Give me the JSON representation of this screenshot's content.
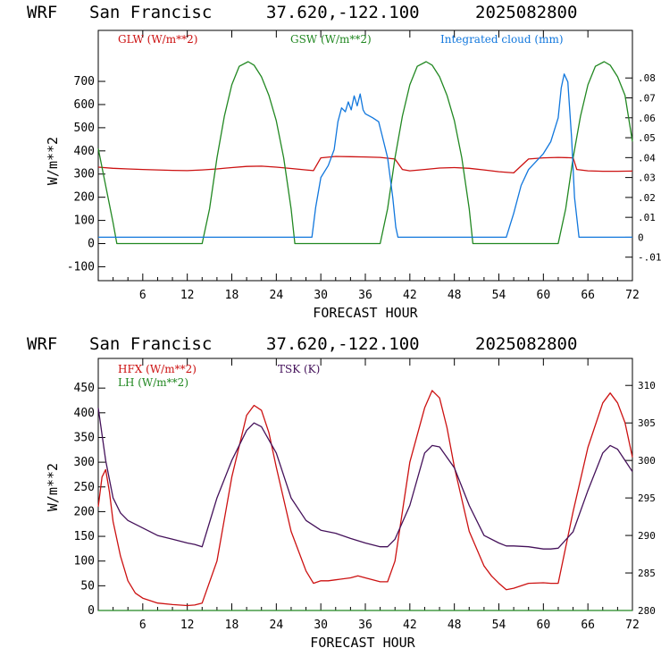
{
  "charts": [
    {
      "header": {
        "model": "WRF",
        "station": "San Francisc",
        "coords": "37.620,-122.100",
        "date": "2025082800"
      },
      "chart_data": {
        "type": "line",
        "xlabel": "FORECAST HOUR",
        "ylabel": "W/m**2",
        "xlim": [
          0,
          72
        ],
        "xticks": [
          6,
          12,
          18,
          24,
          30,
          36,
          42,
          48,
          54,
          60,
          66,
          72
        ],
        "ylim": [
          -160,
          920
        ],
        "yticks": [
          -100,
          0,
          100,
          200,
          300,
          400,
          500,
          600,
          700
        ],
        "y2lim": [
          -0.0218,
          0.1039
        ],
        "y2ticks": [
          -0.01,
          0,
          0.01,
          0.02,
          0.03,
          0.04,
          0.05,
          0.06,
          0.07,
          0.08
        ],
        "y2ticklabels": [
          "-.01",
          "0",
          ".01",
          ".02",
          ".03",
          ".04",
          ".05",
          ".06",
          ".07",
          ".08"
        ],
        "grid": false,
        "legend_position": "top",
        "series": [
          {
            "name": "GLW (W/m**2)",
            "color": "#cc1111",
            "axis": "left",
            "x": [
              0,
              2,
              4,
              6,
              8,
              10,
              12,
              14,
              16,
              18,
              20,
              22,
              24,
              26,
              28,
              29,
              30,
              32,
              34,
              36,
              38,
              40,
              41,
              42,
              44,
              46,
              48,
              50,
              52,
              54,
              56,
              58,
              60,
              62,
              64,
              64.5,
              66,
              68,
              70,
              72
            ],
            "y": [
              330,
              325,
              322,
              320,
              318,
              316,
              315,
              318,
              322,
              328,
              333,
              334,
              330,
              324,
              318,
              315,
              370,
              376,
              375,
              374,
              372,
              365,
              320,
              314,
              320,
              326,
              328,
              325,
              318,
              310,
              305,
              365,
              370,
              372,
              370,
              320,
              314,
              312,
              312,
              313
            ]
          },
          {
            "name": "GSW (W/m**2)",
            "color": "#228822",
            "axis": "left",
            "x": [
              0,
              1,
              2,
              2.5,
              14,
              15,
              16,
              17,
              18,
              19,
              20.2,
              21,
              22,
              23,
              24,
              25,
              26,
              26.5,
              38,
              39,
              40,
              41,
              42,
              43,
              44.2,
              45,
              46,
              47,
              48,
              49,
              50,
              50.5,
              62,
              63,
              64,
              65,
              66,
              67,
              68.2,
              69,
              70,
              71,
              72
            ],
            "y": [
              410,
              250,
              90,
              0,
              0,
              150,
              370,
              550,
              685,
              765,
              785,
              770,
              720,
              640,
              530,
              370,
              150,
              0,
              0,
              150,
              370,
              550,
              685,
              765,
              785,
              770,
              720,
              640,
              530,
              370,
              150,
              0,
              0,
              150,
              370,
              550,
              685,
              765,
              785,
              770,
              720,
              640,
              440
            ]
          },
          {
            "name": "Integrated cloud (mm)",
            "color": "#1177dd",
            "axis": "right",
            "x": [
              0,
              28.8,
              29.3,
              30,
              31,
              31.8,
              32.3,
              32.8,
              33.3,
              33.7,
              34.1,
              34.5,
              34.9,
              35.3,
              35.7,
              36,
              37,
              37.8,
              38.2,
              39,
              39.7,
              40.1,
              40.4,
              55,
              56,
              57,
              58,
              59,
              60,
              61,
              62,
              62.4,
              62.8,
              63.3,
              63.8,
              64.2,
              64.8,
              72
            ],
            "y": [
              0,
              0,
              0.015,
              0.03,
              0.036,
              0.044,
              0.058,
              0.065,
              0.063,
              0.068,
              0.064,
              0.071,
              0.066,
              0.072,
              0.064,
              0.062,
              0.06,
              0.058,
              0.052,
              0.04,
              0.02,
              0.005,
              0,
              0,
              0.012,
              0.026,
              0.034,
              0.038,
              0.042,
              0.048,
              0.06,
              0.075,
              0.082,
              0.078,
              0.05,
              0.02,
              0,
              0
            ]
          }
        ]
      }
    },
    {
      "header": {
        "model": "WRF",
        "station": "San Francisc",
        "coords": "37.620,-122.100",
        "date": "2025082800"
      },
      "chart_data": {
        "type": "line",
        "xlabel": "FORECAST HOUR",
        "ylabel": "W/m**2",
        "xlim": [
          0,
          72
        ],
        "xticks": [
          6,
          12,
          18,
          24,
          30,
          36,
          42,
          48,
          54,
          60,
          66,
          72
        ],
        "ylim": [
          0,
          510
        ],
        "yticks": [
          0,
          50,
          100,
          150,
          200,
          250,
          300,
          350,
          400,
          450
        ],
        "y2lim": [
          280,
          313.6
        ],
        "y2ticks": [
          280,
          285,
          290,
          295,
          300,
          305,
          310
        ],
        "grid": false,
        "legend_position": "top-left",
        "series": [
          {
            "name": "HFX (W/m**2)",
            "color": "#cc1111",
            "axis": "left",
            "x": [
              0,
              0.5,
              1,
              1.5,
              2,
              3,
              4,
              5,
              6,
              8,
              10,
              12,
              13,
              14,
              16,
              18,
              20,
              21,
              22,
              23,
              24,
              26,
              28,
              29,
              30,
              31,
              32,
              34,
              35,
              36,
              38,
              39,
              40,
              41,
              42,
              44,
              45,
              46,
              47,
              48,
              50,
              52,
              53,
              54,
              55,
              56,
              58,
              60,
              61,
              62,
              64,
              66,
              68,
              69,
              70,
              71,
              72
            ],
            "y": [
              210,
              270,
              285,
              240,
              180,
              110,
              60,
              35,
              25,
              15,
              12,
              10,
              11,
              15,
              100,
              270,
              395,
              415,
              405,
              360,
              290,
              160,
              80,
              55,
              60,
              60,
              62,
              66,
              70,
              66,
              58,
              58,
              100,
              200,
              300,
              410,
              445,
              430,
              370,
              290,
              160,
              90,
              70,
              55,
              42,
              45,
              55,
              56,
              55,
              55,
              200,
              330,
              420,
              440,
              420,
              380,
              310
            ]
          },
          {
            "name": "LH  (W/m**2)",
            "color": "#228822",
            "axis": "left",
            "x": [
              0,
              72
            ],
            "y": [
              0,
              0
            ]
          },
          {
            "name": "TSK (K)",
            "color": "#44115a",
            "axis": "right",
            "x": [
              0,
              1,
              2,
              3,
              4,
              6,
              8,
              10,
              12,
              13,
              14,
              16,
              18,
              20,
              21,
              22,
              24,
              26,
              28,
              30,
              32,
              34,
              36,
              38,
              39,
              40,
              42,
              44,
              45,
              46,
              48,
              50,
              52,
              54,
              55,
              56,
              58,
              60,
              61,
              62,
              64,
              66,
              68,
              69,
              70,
              71,
              72
            ],
            "y": [
              307,
              300,
              295,
              293,
              292,
              291,
              290,
              289.5,
              289,
              288.8,
              288.5,
              295,
              300,
              304,
              305,
              304.5,
              301,
              295,
              292,
              290.7,
              290.3,
              289.6,
              289,
              288.5,
              288.5,
              289.5,
              294,
              301,
              302,
              301.8,
              299,
              294,
              290,
              289,
              288.6,
              288.6,
              288.5,
              288.2,
              288.2,
              288.3,
              290.5,
              296,
              301,
              302,
              301.5,
              300,
              298.5
            ]
          }
        ]
      }
    }
  ]
}
